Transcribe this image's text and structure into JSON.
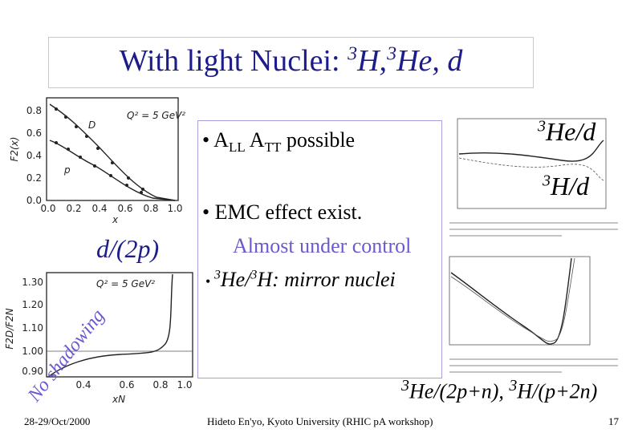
{
  "title": {
    "text": "With light Nuclei:",
    "parts": [
      {
        "sup": "3",
        "base": "H,"
      },
      {
        "sup": "3",
        "base": "He, d"
      }
    ]
  },
  "bullets": [
    {
      "parts": [
        "A",
        "LL",
        " A",
        "TT",
        " possible"
      ]
    },
    {
      "text": "EMC effect exist."
    },
    {
      "text": "Almost under control"
    },
    {
      "parts": [
        "3",
        "He/",
        "3",
        "H: mirror nuclei"
      ]
    }
  ],
  "labels": {
    "he_d": [
      "3",
      "He/d"
    ],
    "h_d": [
      "3",
      "H/d"
    ],
    "d_2p": "d/(2p)",
    "no_shadowing": "No shadowing",
    "ratio": [
      "3",
      "He/(2p+n),",
      "3",
      "H/(p+2n)"
    ]
  },
  "plot_f2": {
    "yticks": [
      "0.8",
      "0.6",
      "0.4",
      "0.2",
      "0.0"
    ],
    "xticks": [
      "0.0",
      "0.2",
      "0.4",
      "0.6",
      "0.8",
      "1.0"
    ],
    "xlabel": "x",
    "ylabel": "F2(x)",
    "D": "D",
    "p": "p",
    "q2": "Q² = 5 GeV²"
  },
  "plot_ratio": {
    "yticks": [
      "1.30",
      "1.20",
      "1.10",
      "1.00",
      "0.90"
    ],
    "xticks": [
      "0.4",
      "0.6",
      "0.8",
      "1.0"
    ],
    "xlabel": "xN",
    "ylabel": "F2D/F2N",
    "q2": "Q² = 5 GeV²"
  },
  "footer": {
    "date": "28-29/Oct/2000",
    "author": "Hideto En'yo, Kyoto University (RHIC pA workshop)",
    "page": "17"
  }
}
